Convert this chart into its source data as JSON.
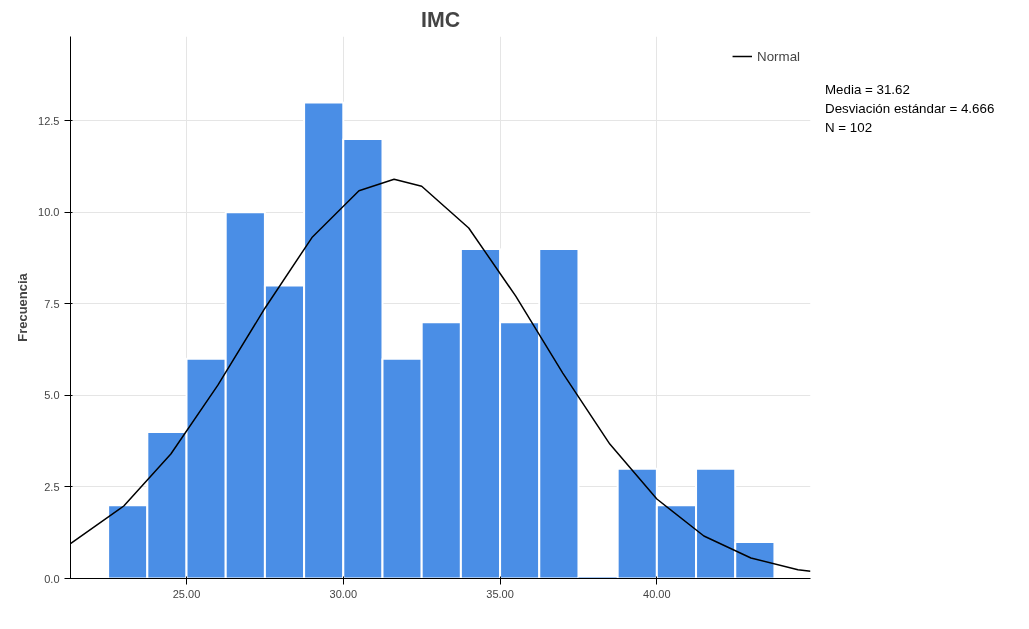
{
  "chart_data": {
    "type": "histogram",
    "title": "IMC",
    "ylabel": "Frecuencia",
    "bins": [
      22.5,
      23.75,
      25,
      26.25,
      27.5,
      28.75,
      30,
      31.25,
      32.5,
      33.75,
      35,
      36.25,
      37.5,
      38.75,
      40,
      41.25,
      42.5,
      43.75
    ],
    "values": [
      2,
      4,
      6,
      10,
      8,
      13,
      12,
      6,
      7,
      9,
      7,
      9,
      0,
      3,
      2,
      3,
      1
    ],
    "color": "#4a8ee6",
    "series": [
      {
        "type": "line",
        "name": "Normal",
        "color": "#000000",
        "x": [
          21.3,
          23,
          24.5,
          26,
          27.5,
          29,
          30.5,
          31.62,
          32.5,
          34,
          35.5,
          37,
          38.5,
          40,
          41.5,
          43,
          44.5,
          44.9
        ],
        "values": [
          0.95,
          1.98,
          3.4,
          5.28,
          7.38,
          9.31,
          10.59,
          10.9,
          10.71,
          9.57,
          7.71,
          5.61,
          3.67,
          2.17,
          1.16,
          0.56,
          0.24,
          0.2
        ]
      }
    ],
    "xlim": [
      21.3,
      44.9
    ],
    "ylim": [
      0,
      14.8
    ],
    "xticks": [
      {
        "value": 25,
        "label": "25.00"
      },
      {
        "value": 30,
        "label": "30.00"
      },
      {
        "value": 35,
        "label": "35.00"
      },
      {
        "value": 40,
        "label": "40.00"
      }
    ],
    "yticks": [
      {
        "value": 0,
        "label": "0.0"
      },
      {
        "value": 2.5,
        "label": "2.5"
      },
      {
        "value": 5,
        "label": "5.0"
      },
      {
        "value": 7.5,
        "label": "7.5"
      },
      {
        "value": 10,
        "label": "10.0"
      },
      {
        "value": 12.5,
        "label": "12.5"
      }
    ],
    "grid": true,
    "legend": "top right",
    "annotations": [
      "Media = 31.62",
      "Desviación estándar = 4.666",
      "N = 102"
    ]
  }
}
